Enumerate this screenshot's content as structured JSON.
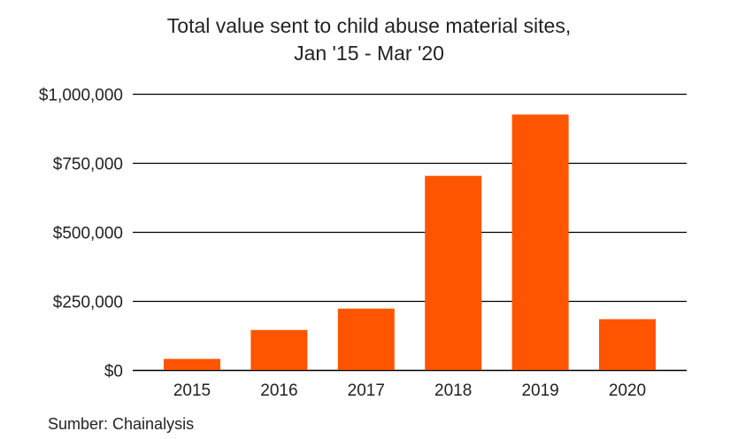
{
  "chart_data": {
    "type": "bar",
    "title_line1": "Total value sent to child abuse material sites,",
    "title_line2": "Jan '15 - Mar '20",
    "xlabel": "",
    "ylabel": "",
    "categories": [
      "2015",
      "2016",
      "2017",
      "2018",
      "2019",
      "2020"
    ],
    "values": [
      40000,
      145000,
      222000,
      703000,
      925000,
      184000
    ],
    "ylim": [
      0,
      1000000
    ],
    "yticks": [
      0,
      250000,
      500000,
      750000,
      1000000
    ],
    "ytick_labels": [
      "$0",
      "$250,000",
      "$500,000",
      "$750,000",
      "$1,000,000"
    ],
    "grid": true,
    "legend": "none",
    "bar_color": "#ff5500",
    "grid_color": "#000000"
  },
  "footer": {
    "source": "Sumber: Chainalysis"
  }
}
